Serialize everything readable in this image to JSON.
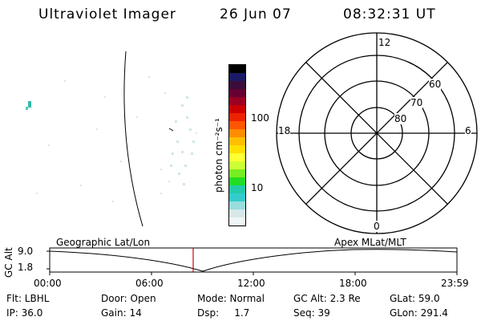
{
  "header": {
    "instrument": "Ultraviolet Imager",
    "date": "26 Jun 07",
    "time": "08:32:31 UT"
  },
  "colorbar": {
    "unit_label": "photon cm⁻²s⁻¹",
    "ticks": [
      "100",
      "10"
    ],
    "colors": [
      "#000000",
      "#1a1a66",
      "#3a0d3a",
      "#660033",
      "#990022",
      "#cc0000",
      "#ee2200",
      "#ff5500",
      "#ff8c00",
      "#ffbf00",
      "#ffe000",
      "#ffff33",
      "#ccff33",
      "#77ee22",
      "#22dd22",
      "#22ccaa",
      "#33cccc",
      "#99dddd",
      "#d7e8e8",
      "#f0f5f5"
    ]
  },
  "polar_plot": {
    "mlt_labels": {
      "top": "12",
      "left": "18",
      "right": "6",
      "bottom": "0"
    },
    "lat_labels": [
      "60",
      "70",
      "80"
    ],
    "colors": {
      "circle": "#000000"
    }
  },
  "timeline": {
    "left_label": "Geographic Lat/Lon",
    "right_label": "Apex MLat/MLT",
    "y_axis_title": "GC Alt",
    "y_ticks": [
      "9.0",
      "1.8"
    ],
    "x_ticks": [
      "00:00",
      "06:00",
      "12:00",
      "18:00",
      "23:59"
    ],
    "current_time_color": "#cc0000"
  },
  "footer": {
    "row1": {
      "flt": "Flt: LBHL",
      "door": "Door: Open",
      "mode": "Mode: Normal",
      "gcalt": "GC Alt: 2.3 Re",
      "glat": "GLat:  59.0"
    },
    "row2": {
      "ip": "IP: 36.0",
      "gain": "Gain: 14",
      "dsp": "Dsp:     1.7",
      "seq": "Seq: 39",
      "glon": "GLon: 291.4"
    }
  }
}
